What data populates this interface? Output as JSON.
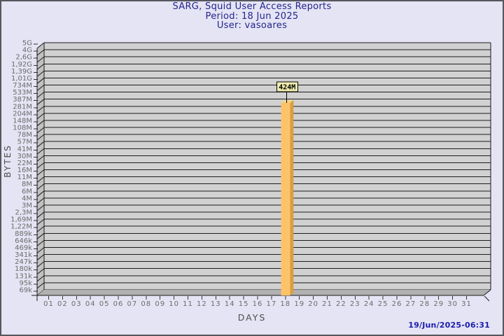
{
  "window": {
    "colors": {
      "background": "#e4e4f4",
      "border": "#56565e",
      "title_text": "#24248e",
      "timestamp_text": "#1b1bb0",
      "tick_text": "#6b6b6b",
      "axis_title_text": "#4c4c4c",
      "plot_bg": "#d1d1d1",
      "wall": "#c1c1c1",
      "floor": "#b1b1b1",
      "gridline": "#1c1c1c",
      "bar_front": "#fcc368",
      "bar_side": "#d99e41",
      "bar_top": "#f3d388",
      "annotation_bg": "#efedae",
      "annotation_border": "#000000",
      "annotation_text": "#000000"
    }
  },
  "title": {
    "line1": "SARG, Squid User Access Reports",
    "line2": "Period: 18 Jun 2025",
    "line3": "User: vasoares"
  },
  "timestamp": "19/Jun/2025-06:31",
  "chart_data": {
    "type": "bar",
    "title": "SARG, Squid User Access Reports",
    "subtitle": [
      "Period: 18 Jun 2025",
      "User: vasoares"
    ],
    "xlabel": "DAYS",
    "ylabel": "BYTES",
    "y_scale": "log",
    "grid": true,
    "categories": [
      "01",
      "02",
      "03",
      "04",
      "05",
      "06",
      "07",
      "08",
      "09",
      "10",
      "11",
      "12",
      "13",
      "14",
      "15",
      "16",
      "17",
      "18",
      "19",
      "20",
      "21",
      "22",
      "23",
      "24",
      "25",
      "26",
      "27",
      "28",
      "29",
      "30",
      "31"
    ],
    "values_mb": [
      0,
      0,
      0,
      0,
      0,
      0,
      0,
      0,
      0,
      0,
      0,
      0,
      0,
      0,
      0,
      0,
      0,
      424,
      0,
      0,
      0,
      0,
      0,
      0,
      0,
      0,
      0,
      0,
      0,
      0,
      0
    ],
    "unit": "MB",
    "y_tick_labels": [
      "5G",
      "4G",
      "2,6G",
      "1,92G",
      "1,39G",
      "1,01G",
      "734M",
      "533M",
      "387M",
      "281M",
      "204M",
      "148M",
      "108M",
      "78M",
      "57M",
      "41M",
      "30M",
      "22M",
      "16M",
      "11M",
      "8M",
      "6M",
      "4M",
      "3M",
      "2,3M",
      "1,69M",
      "1,22M",
      "889k",
      "646k",
      "469k",
      "341k",
      "247k",
      "180k",
      "131k",
      "95k",
      "69k"
    ],
    "y_axis_min_bytes": 69000,
    "y_axis_max_bytes": 5000000000,
    "annotations": [
      {
        "day": "18",
        "label": "424M",
        "value_bytes": 424000000
      }
    ]
  }
}
